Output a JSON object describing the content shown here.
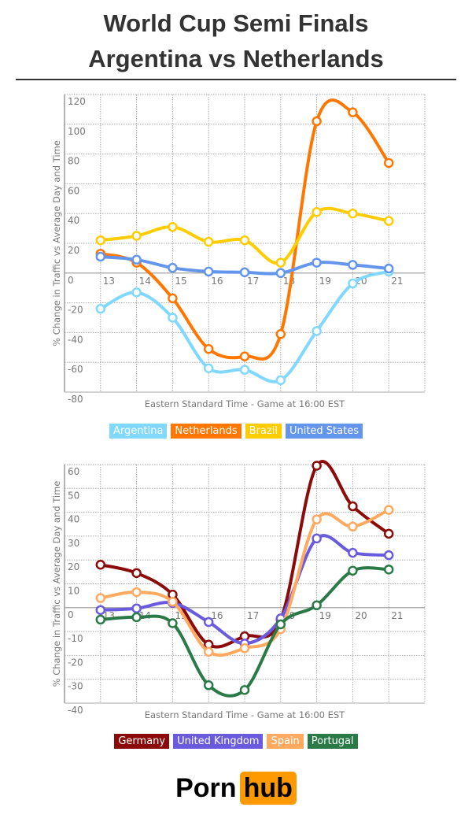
{
  "title_line1": "World Cup Semi Finals",
  "title_line2": "Argentina vs Netherlands",
  "logo": {
    "part1": "Porn",
    "part2": "hub",
    "accent": "#ff9900"
  },
  "chart_data": [
    {
      "type": "line",
      "xlabel": "Eastern Standard Time - Game at 16:00 EST",
      "ylabel": "% Change in Traffic vs Average Day and Time",
      "x": [
        13,
        14,
        15,
        16,
        17,
        18,
        19,
        20,
        21
      ],
      "xlim": [
        12,
        22
      ],
      "ylim": [
        -80,
        120
      ],
      "yticks": [
        120,
        100,
        80,
        60,
        40,
        20,
        0,
        -20,
        -40,
        -60,
        -80
      ],
      "grid": true,
      "legend_position": "bottom",
      "series": [
        {
          "name": "Argentina",
          "color": "#80d8ff",
          "values": [
            -24,
            -13,
            -30,
            -64,
            -65,
            -72,
            -39,
            -7,
            1
          ]
        },
        {
          "name": "Netherlands",
          "color": "#ff7700",
          "values": [
            13,
            7,
            -17,
            -51,
            -56,
            -41,
            102,
            108,
            74
          ]
        },
        {
          "name": "Brazil",
          "color": "#ffcc00",
          "values": [
            22,
            25,
            31,
            21,
            22,
            7,
            41,
            40,
            35
          ]
        },
        {
          "name": "United States",
          "color": "#6495ed",
          "values": [
            11,
            9,
            3.5,
            1,
            0.5,
            0,
            7,
            5.5,
            3
          ]
        }
      ]
    },
    {
      "type": "line",
      "xlabel": "Eastern Standard Time - Game at 16:00 EST",
      "ylabel": "% Change in Traffic vs Average Day and Time",
      "x": [
        13,
        14,
        15,
        16,
        17,
        18,
        19,
        20,
        21
      ],
      "xlim": [
        12,
        22
      ],
      "ylim": [
        -40,
        60
      ],
      "yticks": [
        60,
        50,
        40,
        30,
        20,
        10,
        0,
        -10,
        -20,
        -30,
        -40
      ],
      "grid": true,
      "legend_position": "bottom",
      "series": [
        {
          "name": "Germany",
          "color": "#8b0a0a",
          "values": [
            18,
            14.5,
            5.5,
            -15.5,
            -12,
            -5,
            59.5,
            42.5,
            31
          ]
        },
        {
          "name": "United Kingdom",
          "color": "#6a5ade",
          "values": [
            -1,
            -0.3,
            2,
            -6,
            -15,
            -4.5,
            29,
            23,
            22
          ]
        },
        {
          "name": "Spain",
          "color": "#ffaa60",
          "values": [
            4,
            6.5,
            2.5,
            -18.5,
            -17,
            -9,
            37,
            34,
            41
          ]
        },
        {
          "name": "Portugal",
          "color": "#2a7a48",
          "values": [
            -5,
            -4,
            -6.5,
            -32.5,
            -34.5,
            -7,
            1,
            15.5,
            16
          ]
        }
      ]
    }
  ]
}
